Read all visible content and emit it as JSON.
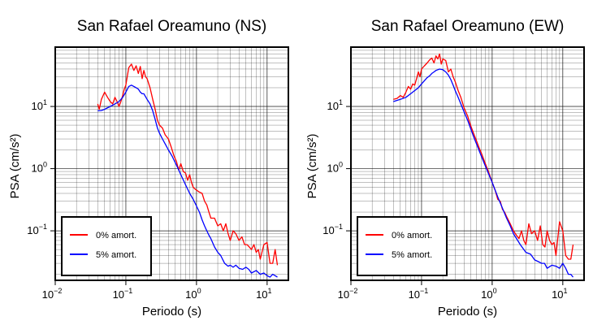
{
  "colors": {
    "undamped": "#ff0000",
    "damped": "#0000ff",
    "grid": "#000000",
    "background": "#ffffff"
  },
  "chart_data": [
    {
      "type": "line",
      "title": "San Rafael Oreamuno (NS)",
      "xlabel": "Periodo (s)",
      "ylabel": "PSA (cm/s²)",
      "x_scale": "log",
      "y_scale": "log",
      "xlim": [
        0.01,
        20
      ],
      "ylim": [
        0.016,
        90
      ],
      "x_ticks": [
        {
          "base": "10",
          "exp": "−2",
          "value": 0.01
        },
        {
          "base": "10",
          "exp": "−1",
          "value": 0.1
        },
        {
          "base": "10",
          "exp": "0",
          "value": 1
        },
        {
          "base": "10",
          "exp": "1",
          "value": 10
        }
      ],
      "y_ticks": [
        {
          "base": "10",
          "exp": "−1",
          "value": 0.1
        },
        {
          "base": "10",
          "exp": "0",
          "value": 1
        },
        {
          "base": "10",
          "exp": "1",
          "value": 10
        }
      ],
      "grid": true,
      "legend_position": "bottom-left",
      "series": [
        {
          "name": "0% amort.",
          "color": "#ff0000",
          "x": [
            0.04,
            0.042,
            0.045,
            0.05,
            0.055,
            0.06,
            0.065,
            0.07,
            0.075,
            0.08,
            0.085,
            0.09,
            0.095,
            0.1,
            0.11,
            0.12,
            0.13,
            0.14,
            0.15,
            0.16,
            0.17,
            0.18,
            0.19,
            0.2,
            0.22,
            0.24,
            0.26,
            0.28,
            0.3,
            0.33,
            0.36,
            0.4,
            0.44,
            0.48,
            0.52,
            0.56,
            0.6,
            0.65,
            0.7,
            0.75,
            0.8,
            0.85,
            0.9,
            1,
            1.1,
            1.2,
            1.3,
            1.4,
            1.5,
            1.6,
            1.8,
            2,
            2.2,
            2.4,
            2.6,
            2.8,
            3,
            3.3,
            3.6,
            4,
            4.4,
            4.8,
            5.2,
            5.6,
            6,
            6.5,
            7,
            7.5,
            8,
            9,
            10,
            11,
            12,
            13,
            14
          ],
          "y": [
            11,
            9,
            13,
            17,
            14,
            12,
            11,
            14,
            12,
            10,
            12,
            15,
            19,
            22,
            42,
            48,
            38,
            45,
            34,
            44,
            28,
            38,
            30,
            28,
            20,
            13,
            9,
            6,
            5,
            4.5,
            3.5,
            3,
            2.2,
            1.6,
            1.3,
            0.95,
            1.2,
            0.9,
            0.85,
            0.65,
            0.8,
            0.6,
            0.5,
            0.45,
            0.42,
            0.4,
            0.3,
            0.26,
            0.2,
            0.16,
            0.16,
            0.12,
            0.13,
            0.1,
            0.13,
            0.09,
            0.07,
            0.1,
            0.09,
            0.07,
            0.08,
            0.06,
            0.06,
            0.055,
            0.05,
            0.06,
            0.045,
            0.05,
            0.035,
            0.06,
            0.065,
            0.03,
            0.03,
            0.05,
            0.028
          ]
        },
        {
          "name": "5% amort.",
          "color": "#0000ff",
          "x": [
            0.04,
            0.045,
            0.05,
            0.06,
            0.07,
            0.08,
            0.09,
            0.1,
            0.11,
            0.12,
            0.13,
            0.14,
            0.15,
            0.16,
            0.17,
            0.18,
            0.2,
            0.22,
            0.24,
            0.26,
            0.28,
            0.3,
            0.33,
            0.36,
            0.4,
            0.45,
            0.5,
            0.55,
            0.6,
            0.7,
            0.8,
            0.9,
            1,
            1.1,
            1.2,
            1.3,
            1.4,
            1.5,
            1.6,
            1.8,
            2,
            2.2,
            2.5,
            2.8,
            3,
            3.3,
            3.6,
            4,
            4.5,
            5,
            5.5,
            6,
            7,
            8,
            9,
            10,
            11,
            12,
            13,
            14
          ],
          "y": [
            8.5,
            8.6,
            9,
            10,
            11,
            12,
            14,
            17,
            21,
            22,
            21,
            20,
            19,
            17,
            16,
            16,
            13,
            11,
            8.5,
            6.2,
            4.5,
            3.7,
            3,
            2.5,
            2,
            1.6,
            1.25,
            1,
            0.8,
            0.55,
            0.4,
            0.32,
            0.25,
            0.2,
            0.15,
            0.12,
            0.1,
            0.085,
            0.075,
            0.055,
            0.045,
            0.04,
            0.03,
            0.027,
            0.028,
            0.026,
            0.028,
            0.025,
            0.024,
            0.026,
            0.024,
            0.021,
            0.023,
            0.02,
            0.021,
            0.019,
            0.018,
            0.02,
            0.019,
            0.018
          ]
        }
      ],
      "legend": [
        {
          "label": "0% amort."
        },
        {
          "label": "5% amort."
        }
      ]
    },
    {
      "type": "line",
      "title": "San Rafael Oreamuno (EW)",
      "xlabel": "Periodo (s)",
      "ylabel": "PSA (cm/s²)",
      "x_scale": "log",
      "y_scale": "log",
      "xlim": [
        0.01,
        20
      ],
      "ylim": [
        0.016,
        90
      ],
      "x_ticks": [
        {
          "base": "10",
          "exp": "−2",
          "value": 0.01
        },
        {
          "base": "10",
          "exp": "−1",
          "value": 0.1
        },
        {
          "base": "10",
          "exp": "0",
          "value": 1
        },
        {
          "base": "10",
          "exp": "1",
          "value": 10
        }
      ],
      "y_ticks": [
        {
          "base": "10",
          "exp": "−1",
          "value": 0.1
        },
        {
          "base": "10",
          "exp": "0",
          "value": 1
        },
        {
          "base": "10",
          "exp": "1",
          "value": 10
        }
      ],
      "grid": true,
      "legend_position": "bottom-left",
      "series": [
        {
          "name": "0% amort.",
          "color": "#ff0000",
          "x": [
            0.04,
            0.045,
            0.05,
            0.055,
            0.06,
            0.065,
            0.07,
            0.075,
            0.08,
            0.085,
            0.09,
            0.095,
            0.1,
            0.11,
            0.12,
            0.13,
            0.14,
            0.15,
            0.16,
            0.17,
            0.18,
            0.19,
            0.2,
            0.22,
            0.24,
            0.26,
            0.28,
            0.3,
            0.33,
            0.36,
            0.4,
            0.45,
            0.5,
            0.55,
            0.6,
            0.65,
            0.7,
            0.8,
            0.9,
            1,
            1.1,
            1.2,
            1.3,
            1.4,
            1.5,
            1.6,
            1.8,
            2,
            2.2,
            2.4,
            2.6,
            2.8,
            3,
            3.3,
            3.6,
            4,
            4.4,
            4.8,
            5.2,
            5.6,
            6,
            6.5,
            7,
            7.5,
            8,
            9,
            10,
            11,
            12,
            13,
            14
          ],
          "y": [
            13,
            13.5,
            15,
            14,
            17,
            21,
            19,
            23,
            22,
            28,
            36,
            30,
            40,
            45,
            50,
            56,
            60,
            50,
            65,
            58,
            70,
            48,
            58,
            55,
            36,
            40,
            30,
            25,
            18,
            14,
            9.5,
            7,
            4.8,
            3.6,
            2.8,
            2.2,
            1.8,
            1.2,
            0.85,
            0.6,
            0.45,
            0.32,
            0.3,
            0.22,
            0.2,
            0.17,
            0.13,
            0.1,
            0.085,
            0.075,
            0.1,
            0.07,
            0.06,
            0.13,
            0.09,
            0.1,
            0.07,
            0.12,
            0.06,
            0.055,
            0.1,
            0.07,
            0.06,
            0.065,
            0.04,
            0.14,
            0.1,
            0.04,
            0.035,
            0.035,
            0.06
          ]
        },
        {
          "name": "5% amort.",
          "color": "#0000ff",
          "x": [
            0.04,
            0.05,
            0.06,
            0.07,
            0.08,
            0.09,
            0.1,
            0.11,
            0.12,
            0.13,
            0.14,
            0.15,
            0.16,
            0.18,
            0.2,
            0.22,
            0.24,
            0.26,
            0.28,
            0.3,
            0.33,
            0.36,
            0.4,
            0.45,
            0.5,
            0.55,
            0.6,
            0.7,
            0.8,
            0.9,
            1,
            1.2,
            1.4,
            1.6,
            1.8,
            2,
            2.5,
            3,
            3.5,
            4,
            4.5,
            5,
            5.5,
            6,
            7,
            8,
            9,
            10,
            11,
            12,
            13,
            14
          ],
          "y": [
            12,
            13,
            14,
            16,
            18,
            20,
            23,
            26,
            29,
            31,
            34,
            36,
            38,
            40,
            39,
            36,
            32,
            27,
            22,
            18,
            14,
            11,
            8.2,
            6,
            4.3,
            3.2,
            2.5,
            1.6,
            1.1,
            0.8,
            0.6,
            0.35,
            0.23,
            0.16,
            0.12,
            0.09,
            0.06,
            0.045,
            0.042,
            0.034,
            0.032,
            0.03,
            0.03,
            0.025,
            0.028,
            0.027,
            0.025,
            0.03,
            0.025,
            0.02,
            0.02,
            0.018
          ]
        }
      ],
      "legend": [
        {
          "label": "0% amort."
        },
        {
          "label": "5% amort."
        }
      ]
    }
  ]
}
